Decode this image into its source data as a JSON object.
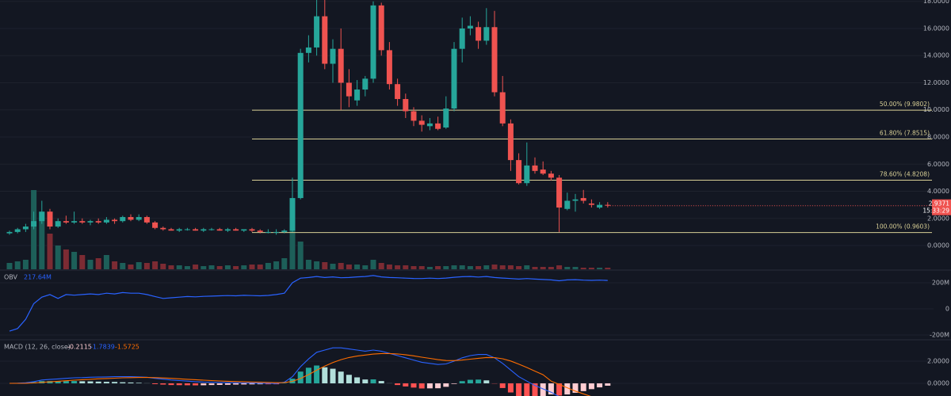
{
  "chart_data": [
    {
      "type": "candlestick",
      "open": [
        0.9,
        1.0,
        1.2,
        1.4,
        1.8,
        2.5,
        1.4,
        1.8,
        1.7,
        1.8,
        1.7,
        1.8,
        1.7,
        1.9,
        1.8,
        2.1,
        1.9,
        2.1,
        1.7,
        1.3,
        1.2,
        1.1,
        1.2,
        1.2,
        1.1,
        1.2,
        1.2,
        1.1,
        1.2,
        1.1,
        1.2,
        1.1,
        1.0,
        1.0,
        1.0,
        1.1,
        3.5,
        14.2,
        14.6,
        16.9,
        13.4,
        14.5,
        12.0,
        10.7,
        11.5,
        12.3,
        17.7,
        14.4,
        11.9,
        10.8,
        9.9,
        9.2,
        8.8,
        9.0,
        8.7,
        10.1,
        14.5,
        16.0,
        16.1,
        15.1,
        16.1,
        11.3,
        9.0,
        6.3,
        4.6,
        5.9,
        5.6,
        5.3,
        5.0,
        2.7,
        3.3,
        3.5,
        3.1,
        2.8,
        3.0
      ],
      "high": [
        1.1,
        1.3,
        1.6,
        2.5,
        3.3,
        2.7,
        2.0,
        2.2,
        2.5,
        2.0,
        1.9,
        2.0,
        2.1,
        2.0,
        2.2,
        2.3,
        2.3,
        2.2,
        1.8,
        1.4,
        1.3,
        1.3,
        1.3,
        1.3,
        1.3,
        1.3,
        1.3,
        1.3,
        1.3,
        1.2,
        1.3,
        1.2,
        1.2,
        1.2,
        1.2,
        5.0,
        14.5,
        15.5,
        18.5,
        18.3,
        15.2,
        16.0,
        13.0,
        12.2,
        12.5,
        18.0,
        17.9,
        15.0,
        12.3,
        11.2,
        10.2,
        9.6,
        9.4,
        9.5,
        11.0,
        15.0,
        16.8,
        16.9,
        16.5,
        17.5,
        17.3,
        12.5,
        9.3,
        6.8,
        7.6,
        6.5,
        6.2,
        5.5,
        5.2,
        3.9,
        3.8,
        4.1,
        3.4,
        3.2,
        3.2
      ],
      "low": [
        0.8,
        0.9,
        1.0,
        1.2,
        1.6,
        1.2,
        1.3,
        1.6,
        1.6,
        1.6,
        1.5,
        1.6,
        1.6,
        1.6,
        1.7,
        1.8,
        1.8,
        1.6,
        1.2,
        1.1,
        1.1,
        1.0,
        1.1,
        1.1,
        1.0,
        1.1,
        1.1,
        1.0,
        1.1,
        1.0,
        1.0,
        0.9,
        0.9,
        0.8,
        0.9,
        1.0,
        3.4,
        13.5,
        14.0,
        13.0,
        12.0,
        10.0,
        10.2,
        10.3,
        11.0,
        12.0,
        14.0,
        11.5,
        10.3,
        9.4,
        8.8,
        8.4,
        8.5,
        8.5,
        8.6,
        9.9,
        13.5,
        15.5,
        14.5,
        14.8,
        11.0,
        8.8,
        5.5,
        4.5,
        4.4,
        5.3,
        5.2,
        4.8,
        1.0,
        2.6,
        2.5,
        3.1,
        2.8,
        2.7,
        2.8
      ],
      "close": [
        1.0,
        1.2,
        1.4,
        1.8,
        2.5,
        1.4,
        1.8,
        1.7,
        1.8,
        1.7,
        1.8,
        1.7,
        1.9,
        1.8,
        2.1,
        1.9,
        2.1,
        1.7,
        1.3,
        1.2,
        1.1,
        1.2,
        1.2,
        1.1,
        1.2,
        1.2,
        1.1,
        1.2,
        1.1,
        1.2,
        1.1,
        1.0,
        1.0,
        1.0,
        1.1,
        3.5,
        14.2,
        14.6,
        16.9,
        13.4,
        14.5,
        12.0,
        11.0,
        11.5,
        12.3,
        17.7,
        14.4,
        11.9,
        10.8,
        9.9,
        9.2,
        8.9,
        9.0,
        8.6,
        10.1,
        14.5,
        16.0,
        16.2,
        15.1,
        16.1,
        11.3,
        9.0,
        6.3,
        4.6,
        5.9,
        5.5,
        5.3,
        5.0,
        2.8,
        3.3,
        3.4,
        3.3,
        3.0,
        3.0,
        2.9371
      ],
      "volume": [
        8,
        10,
        12,
        100,
        72,
        45,
        30,
        25,
        22,
        18,
        12,
        14,
        18,
        10,
        8,
        6,
        9,
        8,
        10,
        7,
        5,
        5,
        4,
        6,
        4,
        5,
        4,
        5,
        4,
        5,
        6,
        6,
        8,
        10,
        14,
        65,
        35,
        12,
        10,
        9,
        7,
        8,
        6,
        6,
        5,
        12,
        8,
        6,
        5,
        5,
        4,
        4,
        3,
        4,
        4,
        5,
        5,
        4,
        4,
        5,
        6,
        5,
        5,
        4,
        5,
        3,
        3,
        3,
        5,
        3,
        3,
        2,
        2,
        2,
        2
      ],
      "up_color": "#26a69a",
      "down_color": "#ef5350",
      "volume_up_color": "#1d5f59",
      "volume_down_color": "#7c2b33",
      "fib_color": "#d8cf96",
      "fib_levels": [
        {
          "value": 9.9802,
          "label": "50.00% (9.9802)"
        },
        {
          "value": 7.8515,
          "label": "61.80% (7.8515)"
        },
        {
          "value": 4.8208,
          "label": "78.60% (4.8208)"
        },
        {
          "value": 0.9603,
          "label": "100.00% (0.9603)"
        }
      ],
      "ylim": [
        -1.75,
        18.1
      ],
      "yticks": [
        {
          "value": 0,
          "label": "0.0000"
        },
        {
          "value": 2,
          "label": "2.0000"
        },
        {
          "value": 4,
          "label": "4.0000"
        },
        {
          "value": 6,
          "label": "6.0000"
        },
        {
          "value": 8,
          "label": "8.0000"
        },
        {
          "value": 10,
          "label": "10.0000"
        },
        {
          "value": 12,
          "label": "12.0000"
        },
        {
          "value": 14,
          "label": "14.0000"
        },
        {
          "value": 16,
          "label": "16.0000"
        },
        {
          "value": 18,
          "label": "18.0000"
        }
      ],
      "last_price": 2.9371,
      "countdown": "15:33:29",
      "grid": true
    },
    {
      "type": "line",
      "series": [
        {
          "name": "OBV",
          "color": "#2962ff",
          "last_label": "217.64M",
          "values": [
            -170,
            -150,
            -80,
            40,
            90,
            110,
            80,
            110,
            105,
            110,
            115,
            110,
            120,
            115,
            125,
            120,
            120,
            110,
            95,
            80,
            85,
            90,
            95,
            92,
            96,
            98,
            100,
            102,
            100,
            104,
            102,
            100,
            103,
            110,
            120,
            200,
            235,
            240,
            248,
            240,
            245,
            238,
            240,
            245,
            248,
            255,
            245,
            240,
            238,
            235,
            233,
            232,
            235,
            232,
            236,
            242,
            246,
            248,
            244,
            248,
            240,
            236,
            232,
            228,
            232,
            228,
            225,
            222,
            215,
            222,
            224,
            220,
            218,
            220,
            217.64
          ]
        }
      ],
      "ylim": [
        -230,
        291
      ],
      "yticks": [
        {
          "value": -200,
          "label": "-200M"
        },
        0,
        {
          "value": 200,
          "label": "200M"
        }
      ],
      "grid": true
    },
    {
      "type": "macd",
      "title": "MACD (12, 26, close)",
      "histogram": {
        "colors": [
          "#26a69a",
          "#b2dfdb",
          "#ff5252",
          "#ffcdd2"
        ],
        "values": [
          0,
          0.02,
          0.04,
          0.11,
          0.21,
          0.21,
          0.21,
          0.21,
          0.21,
          0.19,
          0.18,
          0.16,
          0.14,
          0.13,
          0.1,
          0.08,
          0.05,
          0.01,
          -0.07,
          -0.11,
          -0.15,
          -0.16,
          -0.17,
          -0.18,
          -0.17,
          -0.15,
          -0.14,
          -0.13,
          -0.11,
          -0.1,
          -0.09,
          -0.08,
          -0.08,
          -0.08,
          0.03,
          0.42,
          1.06,
          1.41,
          1.61,
          1.45,
          1.32,
          1.06,
          0.77,
          0.54,
          0.35,
          0.36,
          0.21,
          0.01,
          -0.15,
          -0.28,
          -0.38,
          -0.46,
          -0.45,
          -0.44,
          -0.31,
          -0.05,
          0.2,
          0.32,
          0.34,
          0.27,
          -0.02,
          -0.42,
          -0.82,
          -1.14,
          -1.23,
          -1.3,
          -1.28,
          -1.0,
          -1.1,
          -1.0,
          -0.85,
          -0.7,
          -0.52,
          -0.36,
          -0.2115
        ]
      },
      "macd": {
        "color": "#2962ff",
        "values": [
          0,
          0.02,
          0.05,
          0.15,
          0.3,
          0.35,
          0.4,
          0.45,
          0.5,
          0.52,
          0.55,
          0.57,
          0.58,
          0.6,
          0.6,
          0.6,
          0.58,
          0.55,
          0.45,
          0.38,
          0.3,
          0.25,
          0.2,
          0.15,
          0.12,
          0.1,
          0.08,
          0.06,
          0.05,
          0.04,
          0.03,
          0.02,
          0,
          -0.02,
          0.1,
          0.6,
          1.5,
          2.2,
          2.8,
          3.0,
          3.2,
          3.2,
          3.1,
          3.0,
          2.9,
          3.0,
          2.9,
          2.7,
          2.5,
          2.3,
          2.1,
          1.9,
          1.8,
          1.7,
          1.75,
          2.0,
          2.3,
          2.5,
          2.6,
          2.6,
          2.3,
          1.8,
          1.2,
          0.6,
          0.2,
          -0.2,
          -0.5,
          -0.8,
          -1.2,
          -1.4,
          -1.55,
          -1.65,
          -1.72,
          -1.76,
          -1.7839
        ]
      },
      "signal": {
        "color": "#ff6d00",
        "values": [
          0,
          0,
          0.01,
          0.04,
          0.09,
          0.14,
          0.19,
          0.24,
          0.29,
          0.33,
          0.37,
          0.41,
          0.44,
          0.47,
          0.5,
          0.52,
          0.53,
          0.54,
          0.52,
          0.49,
          0.45,
          0.41,
          0.37,
          0.33,
          0.29,
          0.25,
          0.22,
          0.19,
          0.16,
          0.14,
          0.12,
          0.1,
          0.08,
          0.06,
          0.07,
          0.18,
          0.44,
          0.79,
          1.19,
          1.55,
          1.88,
          2.14,
          2.33,
          2.46,
          2.55,
          2.64,
          2.69,
          2.69,
          2.65,
          2.58,
          2.48,
          2.36,
          2.25,
          2.14,
          2.06,
          2.05,
          2.1,
          2.18,
          2.26,
          2.33,
          2.32,
          2.22,
          2.02,
          1.74,
          1.43,
          1.1,
          0.78,
          0.2,
          -0.1,
          -0.4,
          -0.7,
          -0.95,
          -1.2,
          -1.4,
          -1.5725
        ]
      },
      "ylim": [
        -1.14,
        3.86
      ],
      "yticks": [
        {
          "value": 0,
          "label": "0.0000"
        },
        {
          "value": 2,
          "label": "2.0000"
        }
      ],
      "grid": true
    }
  ]
}
